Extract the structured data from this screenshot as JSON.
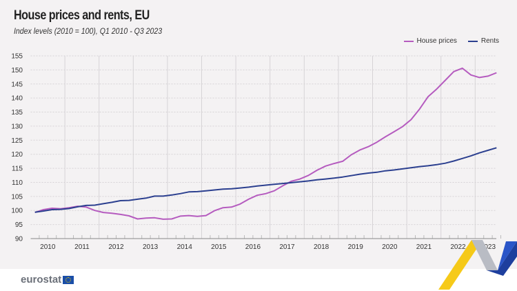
{
  "chart_data": {
    "type": "line",
    "title": "House prices and rents, EU",
    "subtitle": "Index levels (2010 = 100), Q1 2010 - Q3 2023",
    "xlabel": "",
    "ylabel": "",
    "ylim": [
      90,
      155
    ],
    "yticks": [
      90,
      95,
      100,
      105,
      110,
      115,
      120,
      125,
      130,
      135,
      140,
      145,
      150,
      155
    ],
    "xticks": [
      "2010",
      "2011",
      "2012",
      "2013",
      "2014",
      "2015",
      "2016",
      "2017",
      "2018",
      "2019",
      "2020",
      "2021",
      "2022",
      "2023"
    ],
    "x_start": "2010-Q1",
    "x_end": "2023-Q3",
    "grid": true,
    "legend_position": "top-right",
    "series": [
      {
        "name": "House prices",
        "color": "#b55bbf",
        "values": [
          99.3,
          100.3,
          100.8,
          100.6,
          101,
          101.5,
          101.2,
          100,
          99.3,
          99,
          98.6,
          98.1,
          97,
          97.3,
          97.4,
          96.9,
          97,
          98,
          98.2,
          97.9,
          98.2,
          99.9,
          101,
          101.2,
          102.3,
          104,
          105.4,
          106,
          107,
          108.8,
          110.4,
          111.2,
          112.5,
          114.3,
          115.8,
          116.7,
          117.5,
          119.8,
          121.5,
          122.7,
          124.3,
          126.2,
          128,
          129.8,
          132.3,
          136.1,
          140.5,
          143.2,
          146.3,
          149.4,
          150.6,
          148.2,
          147.3,
          147.8,
          149
        ]
      },
      {
        "name": "Rents",
        "color": "#2b3f8f",
        "values": [
          99.4,
          99.8,
          100.3,
          100.4,
          100.7,
          101.3,
          101.8,
          101.9,
          102.4,
          102.9,
          103.5,
          103.6,
          104,
          104.4,
          105.1,
          105.1,
          105.5,
          106,
          106.6,
          106.7,
          107,
          107.3,
          107.6,
          107.7,
          108,
          108.3,
          108.7,
          109,
          109.3,
          109.6,
          109.9,
          110.2,
          110.5,
          110.9,
          111.2,
          111.5,
          111.9,
          112.4,
          112.9,
          113.3,
          113.6,
          114.1,
          114.4,
          114.8,
          115.2,
          115.6,
          115.9,
          116.3,
          116.8,
          117.6,
          118.5,
          119.4,
          120.5,
          121.4,
          122.3
        ]
      }
    ]
  },
  "footer": {
    "logo": "eurostat"
  }
}
